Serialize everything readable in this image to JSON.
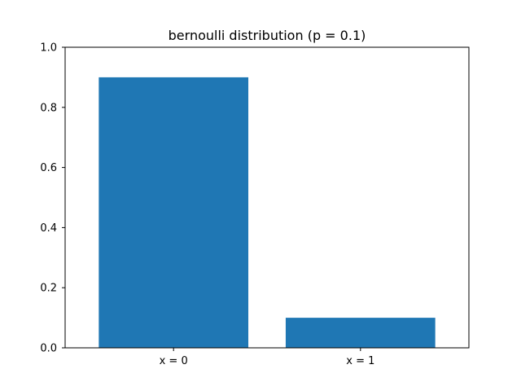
{
  "chart_data": {
    "type": "bar",
    "title": "bernoulli distribution (p = 0.1)",
    "xlabel": "",
    "ylabel": "",
    "categories": [
      "x = 0",
      "x = 1"
    ],
    "values": [
      0.9,
      0.1
    ],
    "ylim": [
      0,
      1.0
    ],
    "yticks": [
      "0.0",
      "0.2",
      "0.4",
      "0.6",
      "0.8",
      "1.0"
    ],
    "grid": false,
    "legend": "none",
    "bar_color": "#1f77b4"
  }
}
